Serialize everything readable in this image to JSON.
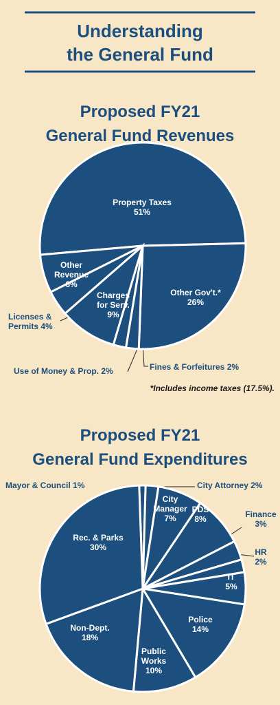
{
  "title": [
    "Understanding",
    "the General Fund"
  ],
  "chart_data": [
    {
      "type": "pie",
      "title": [
        "Proposed FY21",
        "General Fund Revenues"
      ],
      "color": "#1d4f7e",
      "categories": [
        "Property Taxes",
        "Other Gov't.*",
        "Fines & Forfeitures",
        "Use of Money & Prop.",
        "Charges for Serv.",
        "Licenses & Permits",
        "Other Revenue"
      ],
      "values": [
        51,
        26,
        2,
        2,
        9,
        4,
        6
      ],
      "value_labels": [
        "51%",
        "26%",
        "2%",
        "2%",
        "9%",
        "4%",
        "6%"
      ],
      "footnote": "*Includes income taxes (17.5%)."
    },
    {
      "type": "pie",
      "title": [
        "Proposed FY21",
        "General Fund Expenditures"
      ],
      "color": "#1d4f7e",
      "categories": [
        "Mayor & Council",
        "City Attorney",
        "City Manager",
        "PDS",
        "Finance",
        "HR",
        "IT",
        "Police",
        "Public Works",
        "Non-Dept.",
        "Rec. & Parks"
      ],
      "values": [
        1,
        2,
        7,
        8,
        3,
        2,
        5,
        14,
        10,
        18,
        30
      ],
      "value_labels": [
        "1%",
        "2%",
        "7%",
        "8%",
        "3%",
        "2%",
        "5%",
        "14%",
        "10%",
        "18%",
        "30%"
      ]
    }
  ]
}
